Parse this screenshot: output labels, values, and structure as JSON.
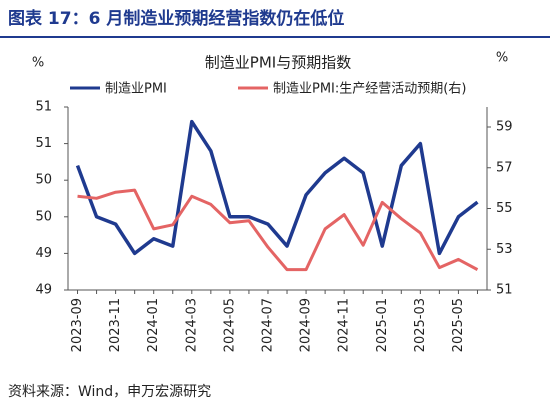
{
  "header": {
    "title": "图表 17：6 月制造业预期经营指数仍在低位"
  },
  "chart_data": {
    "type": "line",
    "title": "制造业PMI与预期指数",
    "ylabel": "%",
    "y2label": "%",
    "categories": [
      "2023-09",
      null,
      "2023-11",
      null,
      "2024-01",
      null,
      "2024-03",
      null,
      "2024-05",
      null,
      "2024-07",
      null,
      "2024-09",
      null,
      "2024-11",
      null,
      "2025-01",
      null,
      "2025-03",
      null,
      "2025-05",
      null
    ],
    "series": [
      {
        "name": "制造业PMI",
        "color": "#1f3a8f",
        "values": [
          50.2,
          49.5,
          49.4,
          49.0,
          49.2,
          49.1,
          50.8,
          50.4,
          49.5,
          49.5,
          49.4,
          49.1,
          49.8,
          50.1,
          50.3,
          50.1,
          49.1,
          50.2,
          50.5,
          49.0,
          49.5,
          49.7
        ]
      },
      {
        "name": "制造业PMI:生产经营活动预期(右)",
        "color": "#e46464",
        "axis": "y2",
        "values": [
          55.6,
          55.5,
          55.8,
          55.9,
          54.0,
          54.2,
          55.6,
          55.2,
          54.3,
          54.4,
          53.1,
          52.0,
          52.0,
          54.0,
          54.7,
          53.2,
          55.3,
          54.5,
          53.8,
          52.1,
          52.5,
          52.0
        ]
      }
    ],
    "ylim": [
      48.5,
      51
    ],
    "yticks": [
      51,
      {
        "value": 50.5,
        "label": "51"
      },
      50,
      {
        "value": 49.5,
        "label": "50"
      },
      49,
      {
        "value": 48.5,
        "label": "49"
      }
    ],
    "y2lim": [
      51,
      59
    ],
    "y2ticks": [
      51,
      53,
      55,
      57,
      59
    ],
    "grid": false
  },
  "source": "资料来源：Wind，申万宏源研究"
}
